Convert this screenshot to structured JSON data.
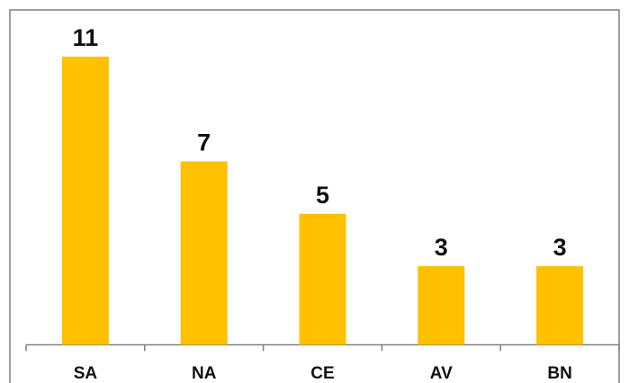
{
  "chart_data": {
    "type": "bar",
    "title": "",
    "xlabel": "",
    "ylabel": "",
    "categories": [
      "SA",
      "NA",
      "CE",
      "AV",
      "BN"
    ],
    "values": [
      11,
      7,
      5,
      3,
      3
    ],
    "data_labels": [
      "11",
      "7",
      "5",
      "3",
      "3"
    ],
    "ylim": [
      0,
      11
    ],
    "grid": false,
    "legend": "none",
    "bar_color": "#FFC000",
    "axis_color": "#808080",
    "border_color": "#7f7f7f"
  }
}
